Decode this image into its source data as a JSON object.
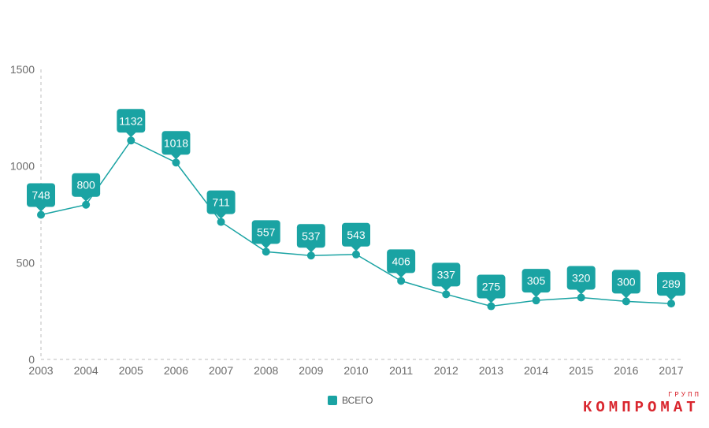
{
  "chart_data": {
    "type": "line",
    "x": [
      "2003",
      "2004",
      "2005",
      "2006",
      "2007",
      "2008",
      "2009",
      "2010",
      "2011",
      "2012",
      "2013",
      "2014",
      "2015",
      "2016",
      "2017"
    ],
    "series": [
      {
        "name": "ВСЕГО",
        "values": [
          748,
          800,
          1132,
          1018,
          711,
          557,
          537,
          543,
          406,
          337,
          275,
          305,
          320,
          300,
          289
        ]
      }
    ],
    "yticks": [
      0,
      500,
      1000,
      1500
    ],
    "ylim": [
      0,
      1500
    ],
    "title": "",
    "xlabel": "",
    "ylabel": "",
    "grid": false,
    "legend_position": "bottom",
    "color": "#1aa3a3"
  },
  "legend": {
    "label": "ВСЕГО"
  },
  "watermark": {
    "main": "КОМПРОМАТ",
    "small": "ГРУПП"
  }
}
